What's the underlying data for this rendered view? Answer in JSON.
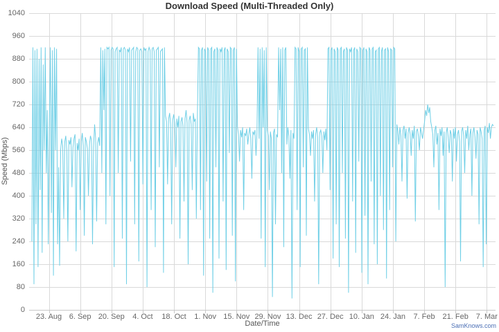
{
  "colors": {
    "background": "#ffffff",
    "grid": "#d9d9d9",
    "axis_line": "#c8c8c8",
    "tick_mark": "#c8c8c8",
    "tick_label": "#666666",
    "title": "#333333",
    "axis_title": "#555555",
    "line": "#6fcfe6",
    "credits": "#4b6fb5"
  },
  "credits": {
    "label": "SamKnows.com"
  },
  "chart_data": {
    "type": "line",
    "title": "Download Speed (Multi-Threaded Only)",
    "xlabel": "Date/Time",
    "ylabel": "Speed (Mbps)",
    "ylim": [
      0,
      1040
    ],
    "yticks": [
      0,
      80,
      160,
      240,
      320,
      400,
      480,
      560,
      640,
      720,
      800,
      880,
      960,
      1040
    ],
    "xtick_labels": [
      "23. Aug",
      "6. Sep",
      "20. Sep",
      "4. Oct",
      "18. Oct",
      "1. Nov",
      "15. Nov",
      "29. Nov",
      "13. Dec",
      "27. Dec",
      "10. Jan",
      "24. Jan",
      "7. Feb",
      "21. Feb",
      "7. Mar"
    ],
    "grid": true,
    "legend": "none",
    "series_name": "Download Speed (Mbps)",
    "values": [
      240,
      920,
      90,
      910,
      300,
      915,
      150,
      880,
      420,
      920,
      200,
      860,
      560,
      920,
      480,
      700,
      230,
      650,
      920,
      340,
      910,
      120,
      920,
      560,
      915,
      230,
      500,
      155,
      560,
      600,
      575,
      320,
      590,
      610,
      560,
      240,
      595,
      580,
      605,
      430,
      570,
      600,
      615,
      205,
      585,
      560,
      600,
      350,
      590,
      620,
      575,
      260,
      605,
      590,
      565,
      400,
      580,
      610,
      595,
      230,
      570,
      650,
      600,
      310,
      585,
      605,
      575,
      920,
      480,
      910,
      700,
      915,
      300,
      920,
      915,
      920,
      400,
      910,
      920,
      915,
      150,
      905,
      915,
      920,
      480,
      910,
      905,
      920,
      250,
      915,
      920,
      910,
      90,
      915,
      905,
      920,
      520,
      910,
      915,
      920,
      300,
      905,
      920,
      915,
      170,
      910,
      915,
      905,
      440,
      920,
      910,
      915,
      80,
      905,
      920,
      910,
      350,
      915,
      920,
      905,
      220,
      910,
      915,
      920,
      500,
      905,
      910,
      915,
      130,
      920,
      680,
      660,
      440,
      670,
      690,
      650,
      300,
      665,
      685,
      655,
      500,
      670,
      640,
      680,
      250,
      660,
      675,
      645,
      380,
      670,
      700,
      655,
      160,
      665,
      680,
      650,
      420,
      690,
      660,
      670,
      320,
      675,
      920,
      915,
      350,
      910,
      920,
      120,
      915,
      905,
      450,
      920,
      910,
      250,
      915,
      920,
      60,
      905,
      915,
      500,
      920,
      910,
      180,
      915,
      905,
      920,
      380,
      910,
      920,
      140,
      915,
      905,
      550,
      920,
      915,
      260,
      910,
      920,
      100,
      915,
      640,
      615,
      520,
      630,
      605,
      640,
      350,
      620,
      610,
      635,
      580,
      615,
      640,
      600,
      460,
      625,
      615,
      630,
      540,
      620,
      920,
      600,
      915,
      250,
      920,
      640,
      910,
      150,
      920,
      630,
      610,
      420,
      625,
      600,
      45,
      620,
      635,
      300,
      615,
      605,
      920,
      700,
      915,
      480,
      920,
      220,
      910,
      920,
      580,
      640,
      610,
      460,
      630,
      40,
      620,
      600,
      920,
      915,
      350,
      920,
      905,
      150,
      915,
      920,
      500,
      910,
      915,
      260,
      920,
      635,
      615,
      540,
      625,
      600,
      630,
      380,
      615,
      640,
      605,
      90,
      620,
      630,
      610,
      480,
      625,
      595,
      635,
      560,
      915,
      920,
      420,
      910,
      920,
      180,
      915,
      905,
      300,
      920,
      910,
      150,
      915,
      920,
      480,
      905,
      915,
      250,
      920,
      910,
      60,
      915,
      905,
      920,
      380,
      910,
      920,
      200,
      915,
      905,
      520,
      920,
      915,
      130,
      910,
      920,
      330,
      915,
      905,
      90,
      920,
      910,
      450,
      915,
      920,
      230,
      905,
      910,
      160,
      915,
      920,
      400,
      905,
      920,
      280,
      910,
      915,
      110,
      920,
      905,
      350,
      915,
      910,
      500,
      920,
      915,
      240,
      650,
      625,
      580,
      640,
      610,
      450,
      630,
      645,
      600,
      635,
      390,
      620,
      640,
      615,
      540,
      630,
      600,
      645,
      310,
      625,
      635,
      610,
      560,
      640,
      620,
      600,
      630,
      660,
      700,
      680,
      720,
      690,
      710,
      660,
      640,
      615,
      500,
      630,
      645,
      580,
      620,
      350,
      635,
      610,
      640,
      540,
      625,
      80,
      620,
      640,
      605,
      550,
      630,
      615,
      450,
      635,
      600,
      640,
      520,
      615,
      630,
      590,
      170,
      625,
      640,
      610,
      480,
      630,
      600,
      645,
      560,
      615,
      635,
      400,
      620,
      640,
      605,
      530,
      630,
      615,
      300,
      640,
      625,
      600,
      150,
      630,
      645,
      230,
      640,
      620,
      655,
      600,
      640,
      650,
      645
    ]
  }
}
